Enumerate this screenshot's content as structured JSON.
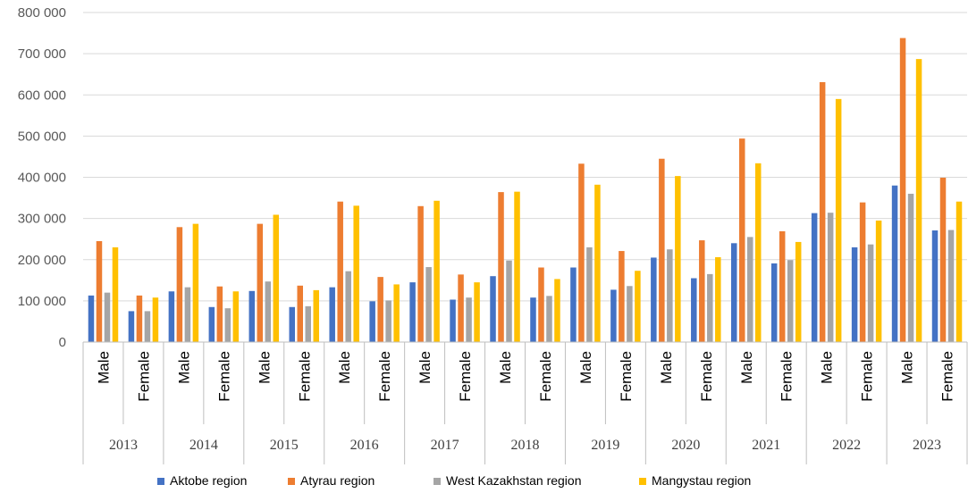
{
  "chart_data": {
    "type": "bar",
    "title": "",
    "xlabel": "",
    "ylabel": "",
    "ylim": [
      0,
      800000
    ],
    "yticks": [
      0,
      100000,
      200000,
      300000,
      400000,
      500000,
      600000,
      700000,
      800000
    ],
    "ytick_labels": [
      "0",
      "100 000",
      "200 000",
      "300 000",
      "400 000",
      "500 000",
      "600 000",
      "700 000",
      "800 000"
    ],
    "grid": true,
    "legend_position": "bottom",
    "groups": [
      "2013",
      "2014",
      "2015",
      "2016",
      "2017",
      "2018",
      "2019",
      "2020",
      "2021",
      "2022",
      "2023"
    ],
    "subcategories": [
      "Male",
      "Female"
    ],
    "series": [
      {
        "name": "Aktobe region",
        "color": "#4472C4",
        "values": [
          113000,
          75000,
          123000,
          85000,
          124000,
          85000,
          133000,
          99000,
          145000,
          103000,
          160000,
          108000,
          181000,
          127000,
          205000,
          155000,
          240000,
          191000,
          313000,
          230000,
          380000,
          271000
        ]
      },
      {
        "name": "Atyrau region",
        "color": "#ED7D31",
        "values": [
          245000,
          113000,
          279000,
          135000,
          287000,
          137000,
          341000,
          158000,
          330000,
          164000,
          364000,
          181000,
          433000,
          221000,
          445000,
          247000,
          494000,
          269000,
          631000,
          339000,
          738000,
          399000
        ]
      },
      {
        "name": "West Kazakhstan region",
        "color": "#A5A5A5",
        "values": [
          120000,
          75000,
          133000,
          82000,
          147000,
          87000,
          172000,
          101000,
          182000,
          108000,
          198000,
          112000,
          230000,
          136000,
          225000,
          165000,
          255000,
          199000,
          314000,
          237000,
          360000,
          272000
        ]
      },
      {
        "name": "Mangystau region",
        "color": "#FFC000",
        "values": [
          230000,
          108000,
          287000,
          123000,
          309000,
          126000,
          331000,
          140000,
          343000,
          145000,
          365000,
          153000,
          382000,
          173000,
          403000,
          206000,
          434000,
          243000,
          590000,
          295000,
          687000,
          341000
        ]
      }
    ]
  }
}
